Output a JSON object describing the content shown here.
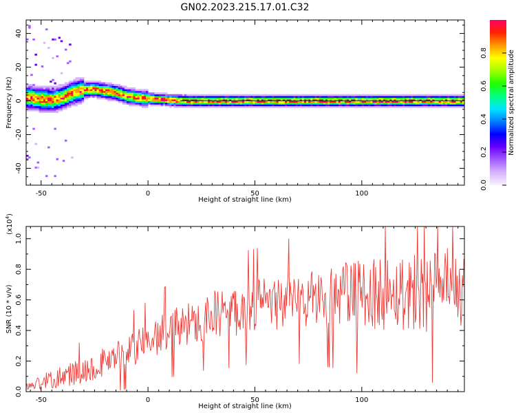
{
  "title": "GN02.2023.215.17.01.C32",
  "colors": {
    "snr_line": "#ee3a36",
    "center_line": "#000000",
    "colormap": [
      "#f8f0ff",
      "#d7b4ff",
      "#a35cff",
      "#6a00ff",
      "#0000ff",
      "#0080ff",
      "#00e5ff",
      "#00ff80",
      "#20ff00",
      "#a0ff00",
      "#ffff00",
      "#ff9900",
      "#ff2200",
      "#ff0066"
    ]
  },
  "chart_data": [
    {
      "type": "heatmap",
      "xlabel": "Height of straight line (km)",
      "ylabel": "Frequency (Hz)",
      "xlim": [
        -57,
        148
      ],
      "ylim": [
        -50,
        48
      ],
      "xticks": [
        -50,
        0,
        50,
        100
      ],
      "xtick_labels": [
        "-50",
        "0",
        "50",
        "100"
      ],
      "yticks": [
        -40,
        -20,
        0,
        20,
        40
      ],
      "ytick_labels": [
        "-40",
        "-20",
        "0",
        "20",
        "40"
      ],
      "colorbar": {
        "label": "Normalized spectral amplitude",
        "range": [
          0,
          1
        ],
        "ticks": [
          0.0,
          0.2,
          0.4,
          0.6,
          0.8
        ],
        "tick_labels": [
          "0.0",
          "0.2",
          "0.4",
          "0.6",
          "0.8"
        ]
      },
      "ridge": {
        "x": [
          -55,
          -50,
          -45,
          -40,
          -35,
          -30,
          -25,
          -20,
          -15,
          -10,
          -5,
          0,
          5,
          10,
          15,
          20,
          30,
          40,
          60,
          80,
          100,
          120,
          140,
          148
        ],
        "frequency": [
          2,
          1,
          0.5,
          2,
          5,
          6.5,
          7,
          6,
          5,
          3,
          2,
          1.5,
          1,
          0.5,
          0.2,
          0,
          0,
          0,
          0,
          0,
          0,
          0,
          0,
          0
        ]
      }
    },
    {
      "type": "line",
      "xlabel": "Height of straight line (km)",
      "ylabel": "SNR (10 * v/v)",
      "yscale_label": "(x10",
      "yscale_exponent": "4",
      "xlim": [
        -57,
        148
      ],
      "ylim": [
        0,
        1.08
      ],
      "xticks": [
        -50,
        0,
        50,
        100
      ],
      "xtick_labels": [
        "-50",
        "0",
        "50",
        "100"
      ],
      "yticks": [
        0.0,
        0.2,
        0.4,
        0.6,
        0.8,
        1.0
      ],
      "ytick_labels": [
        "0.0",
        "0.2",
        "0.4",
        "0.6",
        "0.8",
        "1.0"
      ],
      "series": [
        {
          "x": [
            -57,
            -50,
            -40,
            -30,
            -20,
            -10,
            0,
            10,
            20,
            30,
            40,
            50,
            60,
            70,
            80,
            90,
            100,
            110,
            120,
            130,
            140,
            148
          ],
          "values": [
            0.03,
            0.06,
            0.1,
            0.14,
            0.2,
            0.26,
            0.33,
            0.4,
            0.45,
            0.5,
            0.53,
            0.56,
            0.58,
            0.6,
            0.61,
            0.63,
            0.64,
            0.65,
            0.66,
            0.66,
            0.66,
            0.66
          ],
          "spread": [
            0.03,
            0.05,
            0.07,
            0.09,
            0.1,
            0.11,
            0.12,
            0.14,
            0.15,
            0.16,
            0.17,
            0.17,
            0.18,
            0.19,
            0.2,
            0.22,
            0.24,
            0.25,
            0.26,
            0.27,
            0.28,
            0.28
          ]
        }
      ]
    }
  ]
}
